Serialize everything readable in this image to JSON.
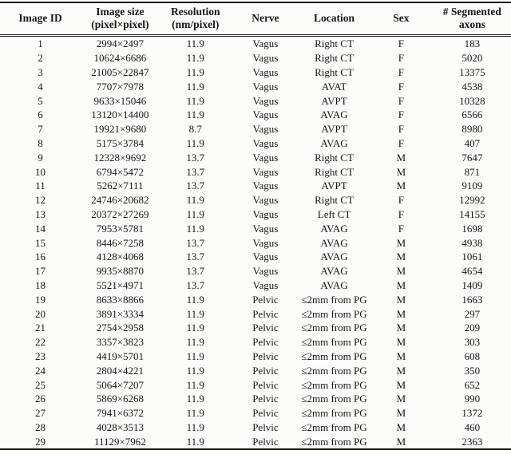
{
  "table": {
    "column_keys": [
      "image-id",
      "image-size",
      "resolution",
      "nerve",
      "location",
      "sex",
      "segmented-axons"
    ],
    "columns": [
      {
        "label": "Image ID",
        "sub": ""
      },
      {
        "label": "Image size",
        "sub": "(pixel×pixel)"
      },
      {
        "label": "Resolution",
        "sub": "(nm/pixel)"
      },
      {
        "label": "Nerve",
        "sub": ""
      },
      {
        "label": "Location",
        "sub": ""
      },
      {
        "label": "Sex",
        "sub": ""
      },
      {
        "label": "# Segmented",
        "sub": "axons"
      }
    ],
    "rows": [
      [
        "1",
        "2994×2497",
        "11.9",
        "Vagus",
        "Right CT",
        "F",
        "183"
      ],
      [
        "2",
        "10624×6686",
        "11.9",
        "Vagus",
        "Right CT",
        "F",
        "5020"
      ],
      [
        "3",
        "21005×22847",
        "11.9",
        "Vagus",
        "Right CT",
        "F",
        "13375"
      ],
      [
        "4",
        "7707×7978",
        "11.9",
        "Vagus",
        "AVAT",
        "F",
        "4538"
      ],
      [
        "5",
        "9633×15046",
        "11.9",
        "Vagus",
        "AVPT",
        "F",
        "10328"
      ],
      [
        "6",
        "13120×14400",
        "11.9",
        "Vagus",
        "AVAG",
        "F",
        "6566"
      ],
      [
        "7",
        "19921×9680",
        "8.7",
        "Vagus",
        "AVPT",
        "F",
        "8980"
      ],
      [
        "8",
        "5175×3784",
        "11.9",
        "Vagus",
        "AVAG",
        "F",
        "407"
      ],
      [
        "9",
        "12328×9692",
        "13.7",
        "Vagus",
        "Right CT",
        "M",
        "7647"
      ],
      [
        "10",
        "6794×5472",
        "13.7",
        "Vagus",
        "Right CT",
        "M",
        "871"
      ],
      [
        "11",
        "5262×7111",
        "13.7",
        "Vagus",
        "AVPT",
        "M",
        "9109"
      ],
      [
        "12",
        "24746×20682",
        "11.9",
        "Vagus",
        "Right CT",
        "F",
        "12992"
      ],
      [
        "13",
        "20372×27269",
        "11.9",
        "Vagus",
        "Left CT",
        "F",
        "14155"
      ],
      [
        "14",
        "7953×5781",
        "11.9",
        "Vagus",
        "AVAG",
        "F",
        "1698"
      ],
      [
        "15",
        "8446×7258",
        "13.7",
        "Vagus",
        "AVAG",
        "M",
        "4938"
      ],
      [
        "16",
        "4128×4068",
        "13.7",
        "Vagus",
        "AVAG",
        "M",
        "1061"
      ],
      [
        "17",
        "9935×8870",
        "13.7",
        "Vagus",
        "AVAG",
        "M",
        "4654"
      ],
      [
        "18",
        "5521×4971",
        "13.7",
        "Vagus",
        "AVAG",
        "M",
        "1409"
      ],
      [
        "19",
        "8633×8866",
        "11.9",
        "Pelvic",
        "≤2mm from PG",
        "M",
        "1663"
      ],
      [
        "20",
        "3891×3334",
        "11.9",
        "Pelvic",
        "≤2mm from PG",
        "M",
        "297"
      ],
      [
        "21",
        "2754×2958",
        "11.9",
        "Pelvic",
        "≤2mm from PG",
        "M",
        "209"
      ],
      [
        "22",
        "3357×3823",
        "11.9",
        "Pelvic",
        "≤2mm from PG",
        "M",
        "303"
      ],
      [
        "23",
        "4419×5701",
        "11.9",
        "Pelvic",
        "≤2mm from PG",
        "M",
        "608"
      ],
      [
        "24",
        "2804×4221",
        "11.9",
        "Pelvic",
        "≤2mm from PG",
        "M",
        "350"
      ],
      [
        "25",
        "5064×7207",
        "11.9",
        "Pelvic",
        "≤2mm from PG",
        "M",
        "652"
      ],
      [
        "26",
        "5869×6268",
        "11.9",
        "Pelvic",
        "≤2mm from PG",
        "M",
        "990"
      ],
      [
        "27",
        "7941×6372",
        "11.9",
        "Pelvic",
        "≤2mm from PG",
        "M",
        "1372"
      ],
      [
        "28",
        "4028×3513",
        "11.9",
        "Pelvic",
        "≤2mm from PG",
        "M",
        "460"
      ],
      [
        "29",
        "11129×7962",
        "11.9",
        "Pelvic",
        "≤2mm from PG",
        "M",
        "2363"
      ]
    ]
  },
  "colors": {
    "text": "#161616",
    "rule": "#1c1c1c",
    "background": "#fcfcfb"
  }
}
